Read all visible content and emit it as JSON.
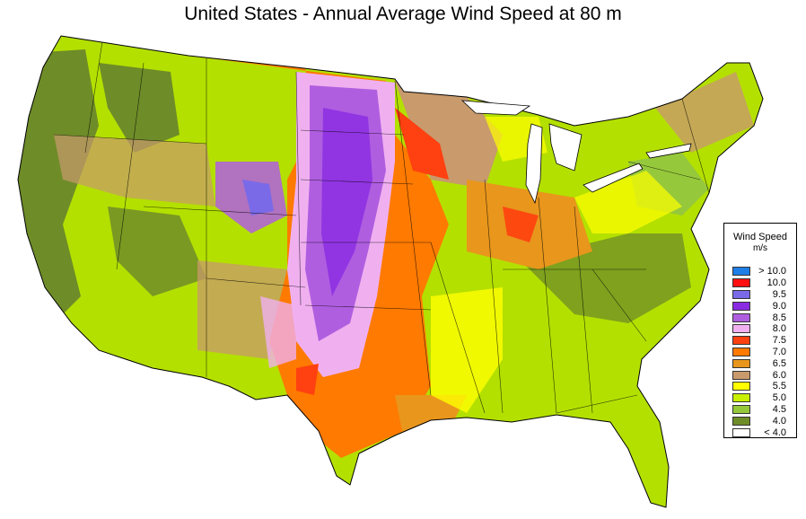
{
  "title": "United States - Annual Average Wind Speed at 80 m",
  "legend": {
    "title": "Wind Speed",
    "unit": "m/s",
    "items": [
      {
        "label": "> 10.0",
        "color": "#1f7fe6"
      },
      {
        "label": "10.0",
        "color": "#ff1010"
      },
      {
        "label": "9.5",
        "color": "#7a6ae8"
      },
      {
        "label": "9.0",
        "color": "#8a2be2"
      },
      {
        "label": "8.5",
        "color": "#b05ee0"
      },
      {
        "label": "8.0",
        "color": "#f0b0f0"
      },
      {
        "label": "7.5",
        "color": "#ff4010"
      },
      {
        "label": "7.0",
        "color": "#ff7a00"
      },
      {
        "label": "6.5",
        "color": "#e8961c"
      },
      {
        "label": "6.0",
        "color": "#c89a6c"
      },
      {
        "label": "5.5",
        "color": "#ffff00"
      },
      {
        "label": "5.0",
        "color": "#c8f000"
      },
      {
        "label": "4.5",
        "color": "#96c83c"
      },
      {
        "label": "4.0",
        "color": "#6e8c28"
      },
      {
        "label": "< 4.0",
        "color": "#ffffff"
      }
    ]
  },
  "map": {
    "land_color": "#b4e000"
  }
}
